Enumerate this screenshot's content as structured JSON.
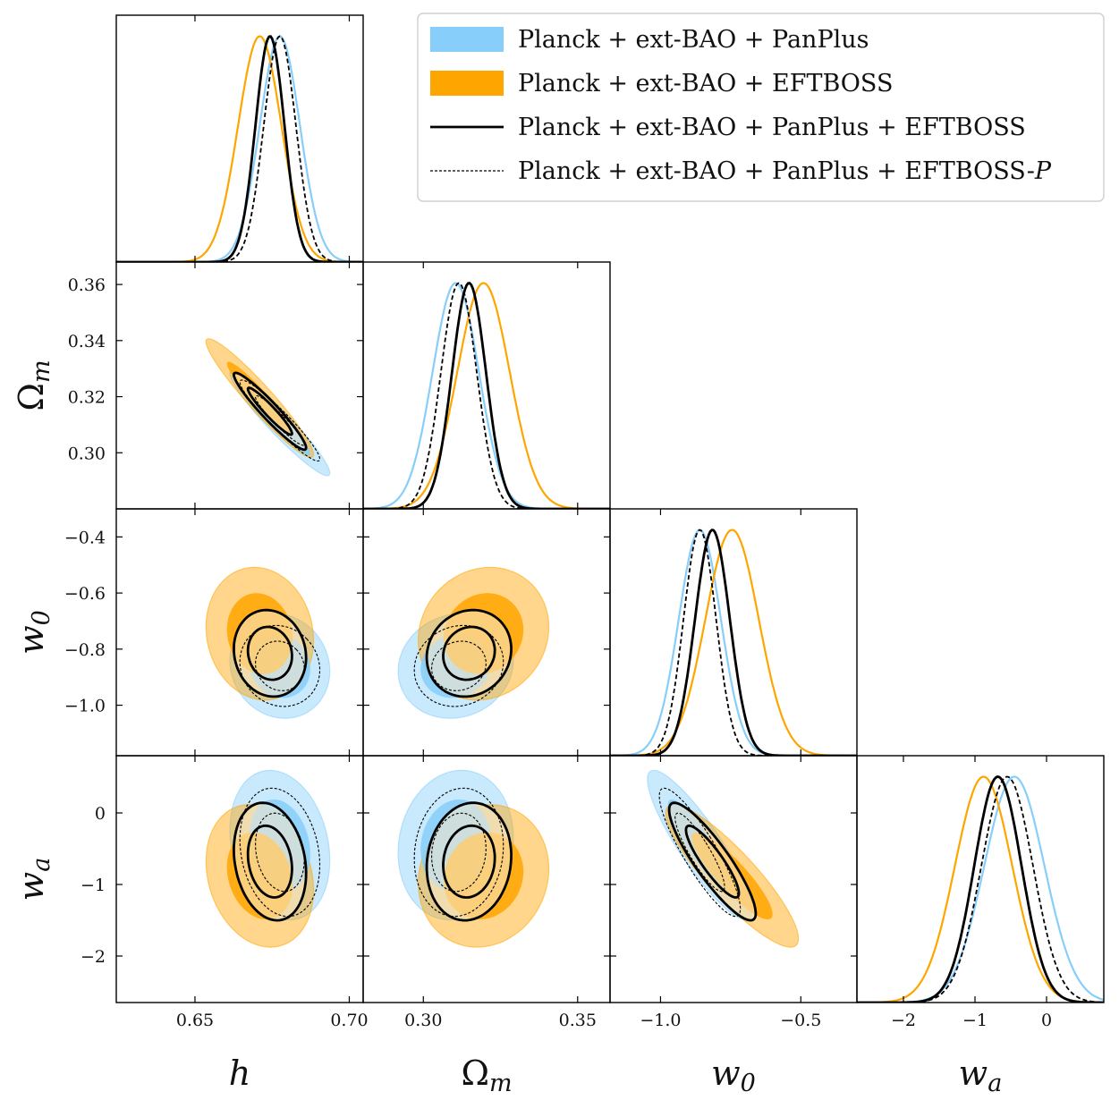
{
  "chart_data": {
    "type": "corner",
    "parameters": [
      {
        "key": "h",
        "label": "h",
        "sub": "",
        "range": [
          0.6245,
          0.7045
        ],
        "ticks": [
          0.65,
          0.7
        ],
        "tick_labels": [
          "0.65",
          "0.70"
        ]
      },
      {
        "key": "Om",
        "label": "Ω",
        "sub": "m",
        "range": [
          0.2805,
          0.3605
        ],
        "ticks": [
          0.3,
          0.35
        ],
        "tick_labels": [
          "0.30",
          "0.35"
        ],
        "y_range": [
          0.28,
          0.368
        ],
        "y_ticks": [
          0.3,
          0.32,
          0.34,
          0.36
        ],
        "y_tick_labels": [
          "0.30",
          "0.32",
          "0.34",
          "0.36"
        ]
      },
      {
        "key": "w0",
        "label": "w",
        "sub": "0",
        "range": [
          -1.18,
          -0.3
        ],
        "ticks": [
          -1.0,
          -0.5
        ],
        "tick_labels": [
          "−1.0",
          "−0.5"
        ],
        "y_ticks": [
          -1.0,
          -0.8,
          -0.6,
          -0.4
        ],
        "y_tick_labels": [
          "−1.0",
          "−0.8",
          "−0.6",
          "−0.4"
        ]
      },
      {
        "key": "wa",
        "label": "w",
        "sub": "a",
        "range": [
          -2.65,
          0.8
        ],
        "ticks": [
          -2,
          -1,
          0
        ],
        "tick_labels": [
          "−2",
          "−1",
          "0"
        ],
        "y_ticks": [
          -2,
          -1,
          0
        ],
        "y_tick_labels": [
          "−2",
          "−1",
          "0"
        ]
      }
    ],
    "legend": {
      "placement": "top-right",
      "entries": [
        {
          "id": "panplus",
          "label": "Planck + ext-BAO + PanPlus",
          "style": "filled",
          "color": "#87CEFA"
        },
        {
          "id": "eftboss",
          "label": "Planck + ext-BAO + EFTBOSS",
          "style": "filled",
          "color": "#FFA500"
        },
        {
          "id": "combined",
          "label": "Planck + ext-BAO + PanPlus + EFTBOSS",
          "style": "solid",
          "color": "#000000"
        },
        {
          "id": "combined_p",
          "label": "Planck + ext-BAO + PanPlus + EFTBOSS-",
          "label_italic": "P",
          "style": "dashed",
          "color": "#000000"
        }
      ]
    },
    "series": [
      {
        "id": "panplus",
        "color": "#87CEFA",
        "mean": {
          "h": 0.6775,
          "Om": 0.3105,
          "w0": -0.86,
          "wa": -0.45
        },
        "sigma": {
          "h": 0.0065,
          "Om": 0.0075,
          "w0": 0.075,
          "wa": 0.42
        }
      },
      {
        "id": "eftboss",
        "color": "#FFA500",
        "mean": {
          "h": 0.671,
          "Om": 0.3195,
          "w0": -0.745,
          "wa": -0.88
        },
        "sigma": {
          "h": 0.007,
          "Om": 0.0085,
          "w0": 0.095,
          "wa": 0.4
        }
      },
      {
        "id": "combined",
        "color": "#000000",
        "mean": {
          "h": 0.6743,
          "Om": 0.3148,
          "w0": -0.815,
          "wa": -0.68
        },
        "sigma": {
          "h": 0.0047,
          "Om": 0.0055,
          "w0": 0.062,
          "wa": 0.33
        }
      },
      {
        "id": "combined_p",
        "color": "#000000",
        "mean": {
          "h": 0.6775,
          "Om": 0.3115,
          "w0": -0.86,
          "wa": -0.55
        },
        "sigma": {
          "h": 0.0052,
          "Om": 0.0058,
          "w0": 0.058,
          "wa": 0.36
        }
      }
    ],
    "correlations": {
      "h_Om": -0.95,
      "h_w0": -0.1,
      "h_wa": -0.2,
      "Om_w0": 0.1,
      "Om_wa": 0.1,
      "w0_wa": -0.88
    },
    "grid": false
  }
}
